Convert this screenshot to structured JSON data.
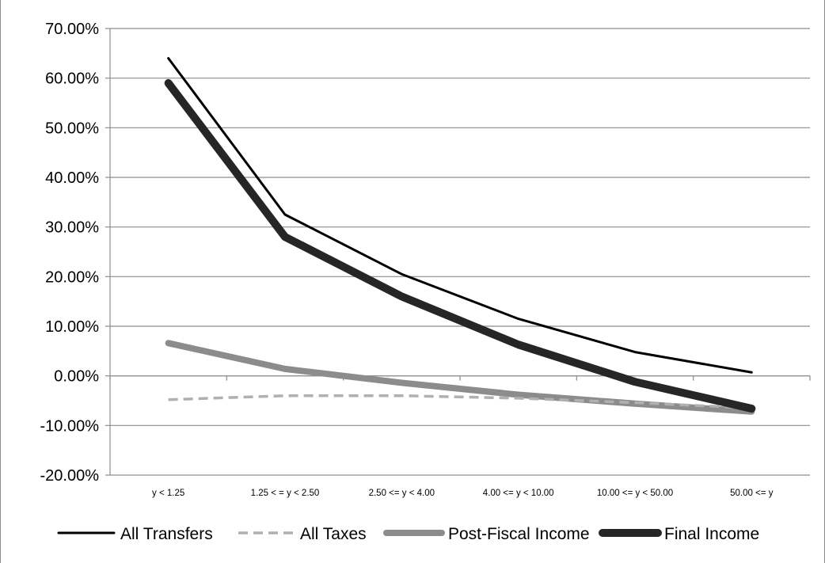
{
  "chart_data": {
    "type": "line",
    "title": "",
    "xlabel": "",
    "ylabel": "",
    "categories": [
      "y < 1.25",
      "1.25 < = y < 2.50",
      "2.50 <= y < 4.00",
      "4.00 <= y < 10.00",
      "10.00 <= y < 50.00",
      "50.00 <= y"
    ],
    "ylim": [
      -0.2,
      0.7
    ],
    "yticks": [
      {
        "value": -0.2,
        "label": "-20.00%"
      },
      {
        "value": -0.1,
        "label": "-10.00%"
      },
      {
        "value": 0.0,
        "label": "0.00%"
      },
      {
        "value": 0.1,
        "label": "10.00%"
      },
      {
        "value": 0.2,
        "label": "20.00%"
      },
      {
        "value": 0.3,
        "label": "30.00%"
      },
      {
        "value": 0.4,
        "label": "40.00%"
      },
      {
        "value": 0.5,
        "label": "50.00%"
      },
      {
        "value": 0.6,
        "label": "60.00%"
      },
      {
        "value": 0.7,
        "label": "70.00%"
      }
    ],
    "grid": true,
    "legend_position": "bottom",
    "series": [
      {
        "name": "All Transfers",
        "values": [
          0.64,
          0.325,
          0.205,
          0.115,
          0.048,
          0.007
        ],
        "color": "#000000",
        "dash": "solid",
        "weight": "thin"
      },
      {
        "name": "All Taxes",
        "values": [
          -0.048,
          -0.04,
          -0.04,
          -0.045,
          -0.054,
          -0.065
        ],
        "color": "#b0b0b0",
        "dash": "dashed",
        "weight": "medium"
      },
      {
        "name": "Post-Fiscal Income",
        "values": [
          0.066,
          0.014,
          -0.014,
          -0.038,
          -0.056,
          -0.072
        ],
        "color": "#8c8c8c",
        "dash": "solid",
        "weight": "thick"
      },
      {
        "name": "Final Income",
        "values": [
          0.59,
          0.28,
          0.16,
          0.063,
          -0.012,
          -0.066
        ],
        "color": "#262626",
        "dash": "solid",
        "weight": "heavy"
      }
    ]
  }
}
